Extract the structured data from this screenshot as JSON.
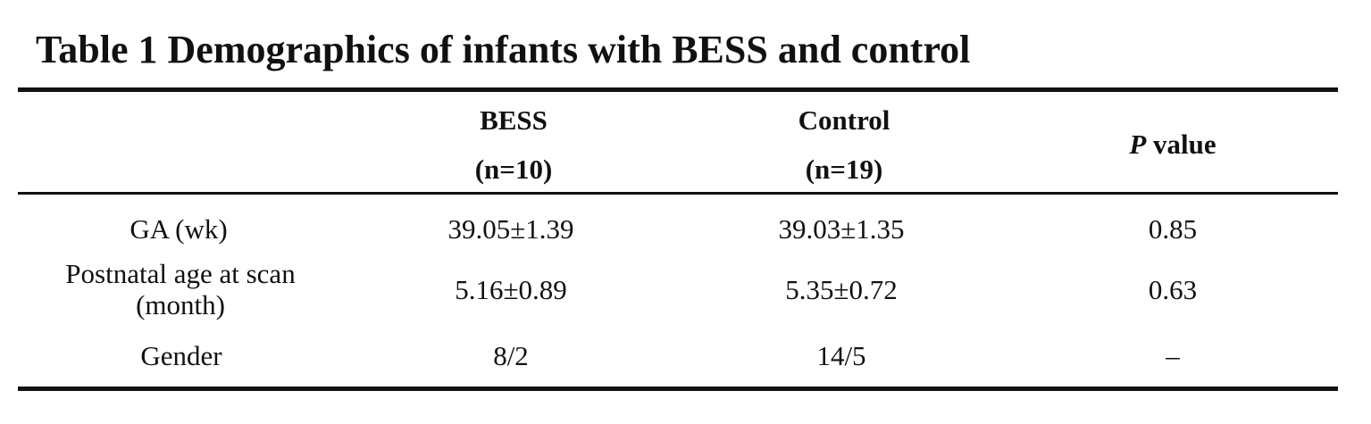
{
  "title": "Table 1 Demographics of infants with BESS and control",
  "table": {
    "header": [
      [
        "BESS",
        "(n=10)"
      ],
      [
        "Control",
        "(n=19)"
      ],
      {
        "italic": "P",
        "text": "value"
      }
    ],
    "rows": [
      [
        [
          "GA (wk)"
        ],
        "39.05±1.39",
        "39.03±1.35",
        "0.85"
      ],
      [
        [
          "Postnatal age at scan",
          "(month)"
        ],
        "5.16±0.89",
        "5.35±0.72",
        "0.63"
      ],
      [
        [
          "Gender"
        ],
        "8/2",
        "14/5",
        "–"
      ]
    ]
  }
}
